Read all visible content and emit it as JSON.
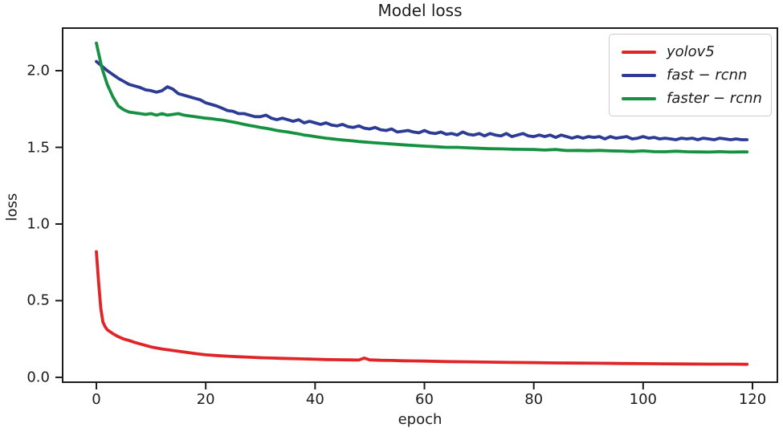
{
  "figure": {
    "title": "Model loss",
    "xlabel": "epoch",
    "ylabel": "loss"
  },
  "colors": {
    "background": "#ffffff",
    "axis": "#1c1c1c",
    "legend_border": "#cccccc",
    "yolov5": "#e02529",
    "fast_rcnn": "#2c3b94",
    "faster_rcnn": "#169142"
  },
  "legend": {
    "position": "upper-right",
    "items": [
      {
        "id": "yolov5",
        "label": "yolov5",
        "color": "#e02529"
      },
      {
        "id": "fast-rcnn",
        "label": "fast − rcnn",
        "color": "#2c3b94"
      },
      {
        "id": "faster-rcnn",
        "label": "faster − rcnn",
        "color": "#169142"
      }
    ]
  },
  "chart_data": {
    "type": "line",
    "title": "Model loss",
    "xlabel": "epoch",
    "ylabel": "loss",
    "xlim": [
      -6.32,
      124.7
    ],
    "ylim": [
      -0.037,
      2.283
    ],
    "grid": false,
    "legend_position": "upper right",
    "xticks": {
      "values": [
        0,
        20,
        40,
        60,
        80,
        100,
        120
      ],
      "labels": [
        "0",
        "20",
        "40",
        "60",
        "80",
        "100",
        "120"
      ]
    },
    "yticks": {
      "values": [
        0.0,
        0.5,
        1.0,
        1.5,
        2.0
      ],
      "labels": [
        "0.0",
        "0.5",
        "1.0",
        "1.5",
        "2.0"
      ]
    },
    "series": [
      {
        "name": "yolov5",
        "color": "#e02529",
        "points": [
          [
            0,
            0.82
          ],
          [
            0.4,
            0.62
          ],
          [
            0.8,
            0.45
          ],
          [
            1.2,
            0.36
          ],
          [
            1.6,
            0.33
          ],
          [
            2,
            0.31
          ],
          [
            3,
            0.285
          ],
          [
            4,
            0.265
          ],
          [
            5,
            0.25
          ],
          [
            6,
            0.24
          ],
          [
            7,
            0.228
          ],
          [
            8,
            0.218
          ],
          [
            9,
            0.208
          ],
          [
            10,
            0.198
          ],
          [
            12,
            0.185
          ],
          [
            14,
            0.175
          ],
          [
            16,
            0.165
          ],
          [
            18,
            0.155
          ],
          [
            20,
            0.147
          ],
          [
            22,
            0.142
          ],
          [
            24,
            0.138
          ],
          [
            26,
            0.134
          ],
          [
            28,
            0.131
          ],
          [
            30,
            0.128
          ],
          [
            32,
            0.126
          ],
          [
            34,
            0.124
          ],
          [
            36,
            0.122
          ],
          [
            38,
            0.12
          ],
          [
            40,
            0.118
          ],
          [
            42,
            0.116
          ],
          [
            44,
            0.115
          ],
          [
            46,
            0.114
          ],
          [
            48,
            0.113
          ],
          [
            49,
            0.126
          ],
          [
            50,
            0.114
          ],
          [
            52,
            0.111
          ],
          [
            54,
            0.11
          ],
          [
            56,
            0.108
          ],
          [
            58,
            0.107
          ],
          [
            60,
            0.106
          ],
          [
            64,
            0.103
          ],
          [
            68,
            0.101
          ],
          [
            72,
            0.099
          ],
          [
            76,
            0.097
          ],
          [
            80,
            0.096
          ],
          [
            84,
            0.094
          ],
          [
            88,
            0.093
          ],
          [
            92,
            0.092
          ],
          [
            96,
            0.09
          ],
          [
            100,
            0.089
          ],
          [
            104,
            0.088
          ],
          [
            108,
            0.087
          ],
          [
            112,
            0.086
          ],
          [
            116,
            0.086
          ],
          [
            119,
            0.085
          ]
        ]
      },
      {
        "name": "fast − rcnn",
        "color": "#2c3b94",
        "points": [
          [
            0,
            2.06
          ],
          [
            1,
            2.03
          ],
          [
            2,
            2.0
          ],
          [
            3,
            1.975
          ],
          [
            4,
            1.95
          ],
          [
            5,
            1.93
          ],
          [
            6,
            1.91
          ],
          [
            7,
            1.9
          ],
          [
            8,
            1.89
          ],
          [
            9,
            1.875
          ],
          [
            10,
            1.87
          ],
          [
            11,
            1.86
          ],
          [
            12,
            1.87
          ],
          [
            13,
            1.895
          ],
          [
            14,
            1.88
          ],
          [
            15,
            1.85
          ],
          [
            16,
            1.84
          ],
          [
            17,
            1.83
          ],
          [
            18,
            1.82
          ],
          [
            19,
            1.81
          ],
          [
            20,
            1.79
          ],
          [
            21,
            1.78
          ],
          [
            22,
            1.77
          ],
          [
            23,
            1.755
          ],
          [
            24,
            1.74
          ],
          [
            25,
            1.735
          ],
          [
            26,
            1.72
          ],
          [
            27,
            1.72
          ],
          [
            28,
            1.71
          ],
          [
            29,
            1.7
          ],
          [
            30,
            1.7
          ],
          [
            31,
            1.71
          ],
          [
            32,
            1.69
          ],
          [
            33,
            1.68
          ],
          [
            34,
            1.69
          ],
          [
            35,
            1.68
          ],
          [
            36,
            1.67
          ],
          [
            37,
            1.68
          ],
          [
            38,
            1.66
          ],
          [
            39,
            1.67
          ],
          [
            40,
            1.66
          ],
          [
            41,
            1.65
          ],
          [
            42,
            1.66
          ],
          [
            43,
            1.645
          ],
          [
            44,
            1.64
          ],
          [
            45,
            1.65
          ],
          [
            46,
            1.635
          ],
          [
            47,
            1.63
          ],
          [
            48,
            1.64
          ],
          [
            49,
            1.625
          ],
          [
            50,
            1.62
          ],
          [
            51,
            1.63
          ],
          [
            52,
            1.615
          ],
          [
            53,
            1.61
          ],
          [
            54,
            1.62
          ],
          [
            55,
            1.6
          ],
          [
            56,
            1.605
          ],
          [
            57,
            1.61
          ],
          [
            58,
            1.6
          ],
          [
            59,
            1.595
          ],
          [
            60,
            1.61
          ],
          [
            61,
            1.595
          ],
          [
            62,
            1.59
          ],
          [
            63,
            1.6
          ],
          [
            64,
            1.585
          ],
          [
            65,
            1.59
          ],
          [
            66,
            1.58
          ],
          [
            67,
            1.6
          ],
          [
            68,
            1.585
          ],
          [
            69,
            1.58
          ],
          [
            70,
            1.59
          ],
          [
            71,
            1.575
          ],
          [
            72,
            1.59
          ],
          [
            73,
            1.58
          ],
          [
            74,
            1.575
          ],
          [
            75,
            1.59
          ],
          [
            76,
            1.57
          ],
          [
            77,
            1.58
          ],
          [
            78,
            1.59
          ],
          [
            79,
            1.575
          ],
          [
            80,
            1.57
          ],
          [
            81,
            1.58
          ],
          [
            82,
            1.57
          ],
          [
            83,
            1.58
          ],
          [
            84,
            1.565
          ],
          [
            85,
            1.58
          ],
          [
            86,
            1.57
          ],
          [
            87,
            1.56
          ],
          [
            88,
            1.57
          ],
          [
            89,
            1.56
          ],
          [
            90,
            1.57
          ],
          [
            91,
            1.565
          ],
          [
            92,
            1.57
          ],
          [
            93,
            1.555
          ],
          [
            94,
            1.57
          ],
          [
            95,
            1.56
          ],
          [
            96,
            1.565
          ],
          [
            97,
            1.57
          ],
          [
            98,
            1.555
          ],
          [
            99,
            1.56
          ],
          [
            100,
            1.57
          ],
          [
            101,
            1.56
          ],
          [
            102,
            1.565
          ],
          [
            103,
            1.555
          ],
          [
            104,
            1.56
          ],
          [
            105,
            1.555
          ],
          [
            106,
            1.55
          ],
          [
            107,
            1.56
          ],
          [
            108,
            1.555
          ],
          [
            109,
            1.56
          ],
          [
            110,
            1.55
          ],
          [
            111,
            1.56
          ],
          [
            112,
            1.555
          ],
          [
            113,
            1.55
          ],
          [
            114,
            1.56
          ],
          [
            115,
            1.555
          ],
          [
            116,
            1.55
          ],
          [
            117,
            1.555
          ],
          [
            118,
            1.55
          ],
          [
            119,
            1.55
          ]
        ]
      },
      {
        "name": "faster − rcnn",
        "color": "#169142",
        "points": [
          [
            0,
            2.18
          ],
          [
            1,
            2.02
          ],
          [
            2,
            1.91
          ],
          [
            3,
            1.83
          ],
          [
            4,
            1.77
          ],
          [
            5,
            1.745
          ],
          [
            6,
            1.73
          ],
          [
            7,
            1.725
          ],
          [
            8,
            1.72
          ],
          [
            9,
            1.715
          ],
          [
            10,
            1.72
          ],
          [
            11,
            1.71
          ],
          [
            12,
            1.72
          ],
          [
            13,
            1.71
          ],
          [
            14,
            1.715
          ],
          [
            15,
            1.72
          ],
          [
            16,
            1.71
          ],
          [
            17,
            1.705
          ],
          [
            18,
            1.7
          ],
          [
            19,
            1.695
          ],
          [
            20,
            1.69
          ],
          [
            21,
            1.687
          ],
          [
            22,
            1.682
          ],
          [
            23,
            1.678
          ],
          [
            24,
            1.672
          ],
          [
            25,
            1.665
          ],
          [
            26,
            1.658
          ],
          [
            27,
            1.65
          ],
          [
            28,
            1.643
          ],
          [
            29,
            1.637
          ],
          [
            30,
            1.63
          ],
          [
            31,
            1.624
          ],
          [
            32,
            1.618
          ],
          [
            33,
            1.61
          ],
          [
            34,
            1.605
          ],
          [
            35,
            1.6
          ],
          [
            36,
            1.594
          ],
          [
            37,
            1.588
          ],
          [
            38,
            1.58
          ],
          [
            39,
            1.576
          ],
          [
            40,
            1.57
          ],
          [
            41,
            1.565
          ],
          [
            42,
            1.56
          ],
          [
            43,
            1.556
          ],
          [
            44,
            1.552
          ],
          [
            45,
            1.548
          ],
          [
            46,
            1.545
          ],
          [
            47,
            1.542
          ],
          [
            48,
            1.538
          ],
          [
            49,
            1.535
          ],
          [
            50,
            1.532
          ],
          [
            52,
            1.527
          ],
          [
            54,
            1.522
          ],
          [
            56,
            1.517
          ],
          [
            58,
            1.512
          ],
          [
            60,
            1.508
          ],
          [
            62,
            1.504
          ],
          [
            64,
            1.5
          ],
          [
            66,
            1.5
          ],
          [
            68,
            1.497
          ],
          [
            70,
            1.494
          ],
          [
            72,
            1.491
          ],
          [
            74,
            1.49
          ],
          [
            76,
            1.488
          ],
          [
            78,
            1.487
          ],
          [
            80,
            1.486
          ],
          [
            82,
            1.482
          ],
          [
            84,
            1.486
          ],
          [
            86,
            1.479
          ],
          [
            88,
            1.48
          ],
          [
            90,
            1.478
          ],
          [
            92,
            1.48
          ],
          [
            94,
            1.477
          ],
          [
            96,
            1.476
          ],
          [
            98,
            1.473
          ],
          [
            100,
            1.477
          ],
          [
            102,
            1.472
          ],
          [
            104,
            1.471
          ],
          [
            106,
            1.475
          ],
          [
            108,
            1.471
          ],
          [
            110,
            1.47
          ],
          [
            112,
            1.469
          ],
          [
            114,
            1.472
          ],
          [
            116,
            1.469
          ],
          [
            118,
            1.47
          ],
          [
            119,
            1.47
          ]
        ]
      }
    ]
  }
}
